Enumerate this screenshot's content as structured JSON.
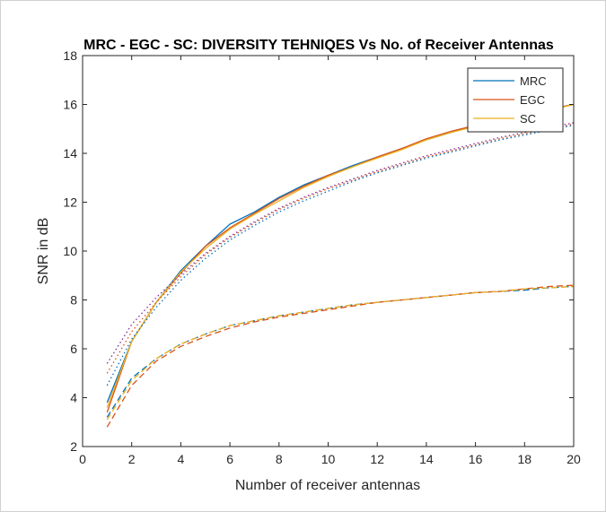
{
  "chart_data": {
    "type": "line",
    "title": "MRC - EGC - SC: DIVERSITY TEHNIQES Vs No. of Receiver Antennas",
    "xlabel": "Number of receiver antennas",
    "ylabel": "SNR in dB",
    "xlim": [
      0,
      20
    ],
    "ylim": [
      2,
      18
    ],
    "xticks": [
      0,
      2,
      4,
      6,
      8,
      10,
      12,
      14,
      16,
      18,
      20
    ],
    "yticks": [
      2,
      4,
      6,
      8,
      10,
      12,
      14,
      16,
      18
    ],
    "legend_position": "top-right",
    "x": [
      1,
      2,
      3,
      4,
      5,
      6,
      7,
      8,
      9,
      10,
      11,
      12,
      13,
      14,
      15,
      16,
      17,
      18,
      19,
      20
    ],
    "series": [
      {
        "name": "MRC",
        "color": "#0072BD",
        "style": "solid",
        "values": [
          3.8,
          6.3,
          7.9,
          9.2,
          10.2,
          11.1,
          11.6,
          12.2,
          12.7,
          13.1,
          13.5,
          13.85,
          14.2,
          14.55,
          14.85,
          15.15,
          15.4,
          15.6,
          15.8,
          16.0
        ]
      },
      {
        "name": "EGC",
        "color": "#D95319",
        "style": "solid",
        "values": [
          3.4,
          6.3,
          7.9,
          9.1,
          10.2,
          10.95,
          11.55,
          12.15,
          12.65,
          13.1,
          13.45,
          13.85,
          14.2,
          14.6,
          14.9,
          15.15,
          15.4,
          15.6,
          15.8,
          16.0
        ]
      },
      {
        "name": "SC",
        "color": "#EDB120",
        "style": "solid",
        "values": [
          3.6,
          6.3,
          7.9,
          9.15,
          10.1,
          10.9,
          11.5,
          12.05,
          12.6,
          13.05,
          13.45,
          13.8,
          14.15,
          14.55,
          14.85,
          15.1,
          15.35,
          15.55,
          15.75,
          16.0
        ]
      },
      {
        "color": "#0072BD",
        "style": "dotted",
        "values": [
          4.5,
          6.4,
          7.7,
          8.8,
          9.7,
          10.45,
          11.05,
          11.6,
          12.05,
          12.45,
          12.85,
          13.2,
          13.5,
          13.8,
          14.05,
          14.3,
          14.55,
          14.75,
          14.95,
          15.15
        ]
      },
      {
        "color": "#D95319",
        "style": "dotted",
        "values": [
          5.0,
          6.7,
          7.9,
          8.95,
          9.85,
          10.55,
          11.15,
          11.7,
          12.15,
          12.55,
          12.9,
          13.25,
          13.55,
          13.85,
          14.1,
          14.35,
          14.6,
          14.8,
          15.0,
          15.2
        ]
      },
      {
        "color": "#7E2F8E",
        "style": "dotted",
        "values": [
          5.4,
          7.0,
          8.1,
          9.05,
          9.9,
          10.6,
          11.2,
          11.75,
          12.2,
          12.6,
          12.95,
          13.3,
          13.6,
          13.9,
          14.15,
          14.4,
          14.65,
          14.85,
          15.05,
          15.25
        ]
      },
      {
        "color": "#0072BD",
        "style": "dashed",
        "values": [
          3.2,
          4.8,
          5.6,
          6.2,
          6.6,
          6.95,
          7.15,
          7.35,
          7.5,
          7.65,
          7.8,
          7.9,
          8.0,
          8.1,
          8.2,
          8.3,
          8.35,
          8.4,
          8.5,
          8.55
        ]
      },
      {
        "color": "#D95319",
        "style": "dashed",
        "values": [
          2.8,
          4.5,
          5.5,
          6.1,
          6.5,
          6.85,
          7.1,
          7.3,
          7.45,
          7.6,
          7.75,
          7.9,
          8.0,
          8.1,
          8.2,
          8.3,
          8.35,
          8.45,
          8.55,
          8.6
        ]
      },
      {
        "color": "#EDB120",
        "style": "dashed",
        "values": [
          3.1,
          4.7,
          5.6,
          6.2,
          6.6,
          6.95,
          7.15,
          7.35,
          7.5,
          7.65,
          7.8,
          7.9,
          8.0,
          8.1,
          8.2,
          8.3,
          8.35,
          8.45,
          8.5,
          8.55
        ]
      }
    ]
  }
}
